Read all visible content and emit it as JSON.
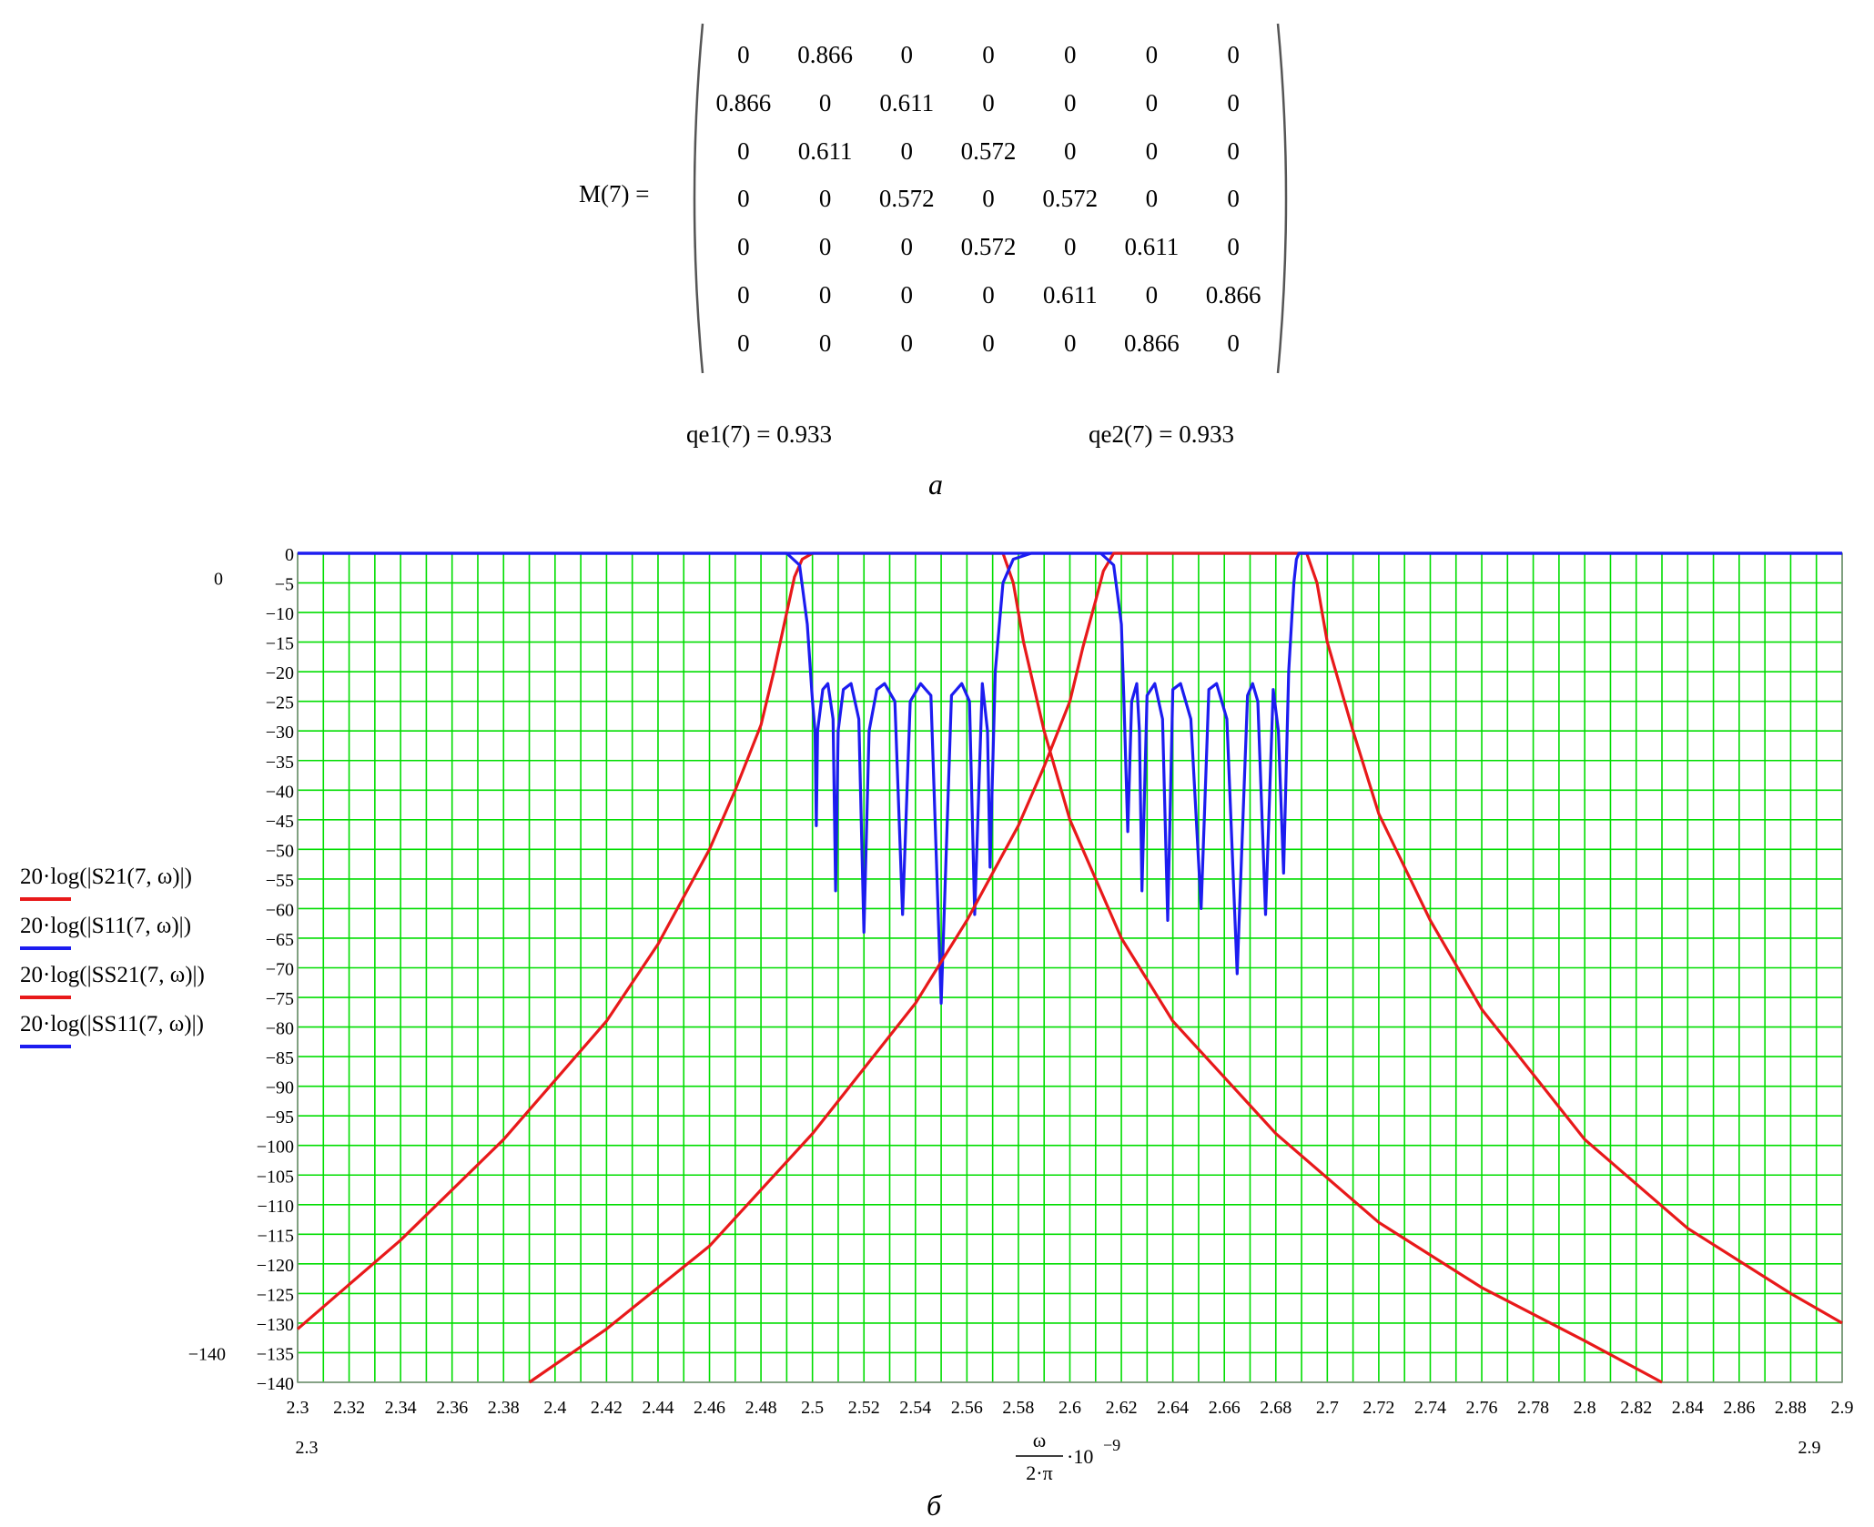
{
  "matrix": {
    "label": "M(7) =",
    "rows": [
      [
        "0",
        "0.866",
        "0",
        "0",
        "0",
        "0",
        "0"
      ],
      [
        "0.866",
        "0",
        "0.611",
        "0",
        "0",
        "0",
        "0"
      ],
      [
        "0",
        "0.611",
        "0",
        "0.572",
        "0",
        "0",
        "0"
      ],
      [
        "0",
        "0",
        "0.572",
        "0",
        "0.572",
        "0",
        "0"
      ],
      [
        "0",
        "0",
        "0",
        "0.572",
        "0",
        "0.611",
        "0"
      ],
      [
        "0",
        "0",
        "0",
        "0",
        "0.611",
        "0",
        "0.866"
      ],
      [
        "0",
        "0",
        "0",
        "0",
        "0",
        "0.866",
        "0"
      ]
    ]
  },
  "qe1": "qe1(7) = 0.933",
  "qe2": "qe2(7) = 0.933",
  "fig_a": "а",
  "fig_b": "б",
  "chart_data": {
    "type": "line",
    "xlim": [
      2.3,
      2.9
    ],
    "ylim": [
      -140,
      0
    ],
    "x_ticks": [
      "2.3",
      "2.32",
      "2.34",
      "2.36",
      "2.38",
      "2.4",
      "2.42",
      "2.44",
      "2.46",
      "2.48",
      "2.5",
      "2.52",
      "2.54",
      "2.56",
      "2.58",
      "2.6",
      "2.62",
      "2.64",
      "2.66",
      "2.68",
      "2.7",
      "2.72",
      "2.74",
      "2.76",
      "2.78",
      "2.8",
      "2.82",
      "2.84",
      "2.86",
      "2.88",
      "2.9"
    ],
    "y_ticks": [
      "0",
      "−5",
      "−10",
      "−15",
      "−20",
      "−25",
      "−30",
      "−35",
      "−40",
      "−45",
      "−50",
      "−55",
      "−60",
      "−65",
      "−70",
      "−75",
      "−80",
      "−85",
      "−90",
      "−95",
      "−100",
      "−105",
      "−110",
      "−115",
      "−120",
      "−125",
      "−130",
      "−135",
      "−140"
    ],
    "y_extra_labels": {
      "top": "0",
      "bottom": "−140"
    },
    "x_min_label": "2.3",
    "x_max_label": "2.9",
    "xlabel": {
      "numerator": "ω",
      "denominator": "2·π",
      "suffix": "·10",
      "exponent": "−9"
    },
    "grid": true,
    "legend_position": "left",
    "colors": {
      "grid": "#00dd00",
      "s21": "#e8191a",
      "s11": "#1c1cf0"
    },
    "series": [
      {
        "name": "20·log(|S21(7, ω)|)",
        "color": "#e8191a",
        "x": [
          2.3,
          2.34,
          2.38,
          2.42,
          2.44,
          2.46,
          2.47,
          2.48,
          2.485,
          2.49,
          2.493,
          2.496,
          2.5,
          2.52,
          2.54,
          2.56,
          2.574,
          2.578,
          2.582,
          2.59,
          2.6,
          2.62,
          2.64,
          2.68,
          2.72,
          2.76,
          2.8,
          2.83
        ],
        "y": [
          -131,
          -116,
          -99,
          -79,
          -66,
          -50,
          -40,
          -29,
          -20,
          -10,
          -4,
          -1,
          0,
          0,
          0,
          0,
          0,
          -5,
          -15,
          -30,
          -45,
          -65,
          -79,
          -98,
          -113,
          -124,
          -133,
          -140
        ]
      },
      {
        "name": "20·log(|S11(7, ω)|)",
        "color": "#1c1cf0",
        "x": [
          2.3,
          2.49,
          2.495,
          2.498,
          2.5,
          2.501,
          2.5015,
          2.502,
          2.504,
          2.506,
          2.508,
          2.509,
          2.51,
          2.512,
          2.515,
          2.518,
          2.52,
          2.522,
          2.525,
          2.528,
          2.532,
          2.535,
          2.538,
          2.542,
          2.546,
          2.55,
          2.554,
          2.558,
          2.561,
          2.563,
          2.566,
          2.568,
          2.569,
          2.571,
          2.574,
          2.578,
          2.585,
          2.9
        ],
        "y": [
          0,
          0,
          -2,
          -12,
          -25,
          -30,
          -46,
          -30,
          -23,
          -22,
          -28,
          -57,
          -30,
          -23,
          -22,
          -28,
          -64,
          -30,
          -23,
          -22,
          -25,
          -61,
          -25,
          -22,
          -24,
          -76,
          -24,
          -22,
          -25,
          -61,
          -22,
          -30,
          -53,
          -20,
          -5,
          -1,
          0,
          0
        ]
      },
      {
        "name": "20·log(|SS21(7, ω)|)",
        "color": "#e8191a",
        "x": [
          2.39,
          2.42,
          2.46,
          2.5,
          2.54,
          2.56,
          2.58,
          2.59,
          2.6,
          2.605,
          2.61,
          2.613,
          2.617,
          2.62,
          2.64,
          2.66,
          2.68,
          2.692,
          2.696,
          2.7,
          2.71,
          2.72,
          2.74,
          2.76,
          2.8,
          2.84,
          2.88,
          2.9
        ],
        "y": [
          -140,
          -131,
          -117,
          -98,
          -76,
          -62,
          -46,
          -36,
          -25,
          -16,
          -8,
          -3,
          0,
          0,
          0,
          0,
          0,
          0,
          -5,
          -15,
          -30,
          -44,
          -62,
          -77,
          -99,
          -114,
          -125,
          -130
        ]
      },
      {
        "name": "20·log(|SS11(7, ω)|)",
        "color": "#1c1cf0",
        "x": [
          2.3,
          2.612,
          2.617,
          2.62,
          2.621,
          2.6225,
          2.624,
          2.626,
          2.627,
          2.628,
          2.63,
          2.633,
          2.636,
          2.638,
          2.64,
          2.643,
          2.647,
          2.651,
          2.654,
          2.657,
          2.661,
          2.665,
          2.669,
          2.671,
          2.673,
          2.676,
          2.679,
          2.681,
          2.683,
          2.685,
          2.687,
          2.688,
          2.689,
          2.692,
          2.695,
          2.7,
          2.9
        ],
        "y": [
          0,
          0,
          -2,
          -12,
          -25,
          -47,
          -25,
          -22,
          -30,
          -57,
          -24,
          -22,
          -28,
          -62,
          -23,
          -22,
          -28,
          -60,
          -23,
          -22,
          -28,
          -71,
          -24,
          -22,
          -25,
          -61,
          -23,
          -30,
          -54,
          -20,
          -5,
          -1,
          0,
          0,
          0,
          0,
          0
        ]
      }
    ]
  }
}
